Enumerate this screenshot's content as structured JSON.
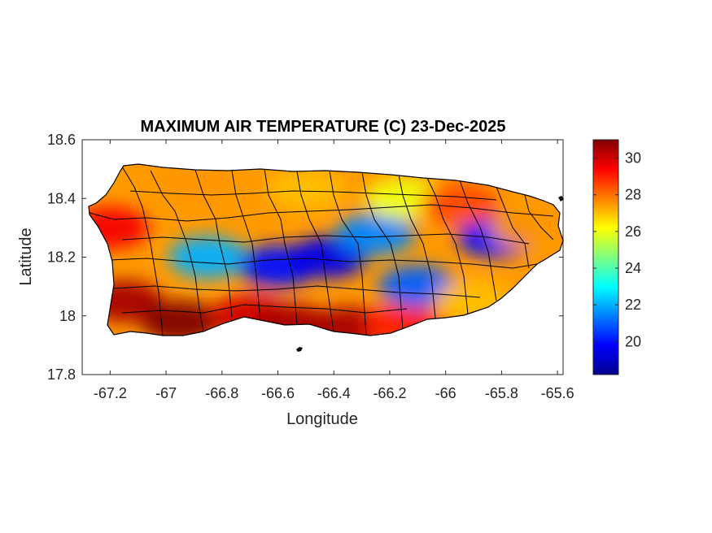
{
  "chart_data": {
    "type": "heatmap",
    "title": "MAXIMUM AIR TEMPERATURE (C) 23-Dec-2025",
    "xlabel": "Longitude",
    "ylabel": "Latitude",
    "xlim": [
      -67.3,
      -65.58
    ],
    "ylim": [
      17.8,
      18.6
    ],
    "xticks": [
      -67.2,
      -67,
      -66.8,
      -66.6,
      -66.4,
      -66.2,
      -66,
      -65.8,
      -65.6
    ],
    "xtick_labels": [
      "-67.2",
      "-67",
      "-66.8",
      "-66.6",
      "-66.4",
      "-66.2",
      "-66",
      "-65.8",
      "-65.6"
    ],
    "yticks": [
      17.8,
      18,
      18.2,
      18.4,
      18.6
    ],
    "ytick_labels": [
      "17.8",
      "18",
      "18.2",
      "18.4",
      "18.6"
    ],
    "colorbar": {
      "colormap": "jet",
      "range": [
        18.2,
        31
      ],
      "ticks": [
        20,
        22,
        24,
        26,
        28,
        30
      ],
      "tick_labels": [
        "20",
        "22",
        "24",
        "26",
        "28",
        "30"
      ]
    },
    "field_regions": [
      {
        "lon": -67.15,
        "lat": 18.05,
        "value": 30.5
      },
      {
        "lon": -66.95,
        "lat": 17.98,
        "value": 31.0
      },
      {
        "lon": -66.7,
        "lat": 18.0,
        "value": 30.0
      },
      {
        "lon": -66.55,
        "lat": 17.97,
        "value": 30.5
      },
      {
        "lon": -66.35,
        "lat": 17.96,
        "value": 30.5
      },
      {
        "lon": -66.15,
        "lat": 17.97,
        "value": 29.0
      },
      {
        "lon": -67.2,
        "lat": 18.3,
        "value": 29.5
      },
      {
        "lon": -66.85,
        "lat": 18.2,
        "value": 22.0
      },
      {
        "lon": -66.6,
        "lat": 18.17,
        "value": 20.0
      },
      {
        "lon": -66.42,
        "lat": 18.2,
        "value": 19.5
      },
      {
        "lon": -66.25,
        "lat": 18.28,
        "value": 21.5
      },
      {
        "lon": -66.1,
        "lat": 18.1,
        "value": 21.0
      },
      {
        "lon": -65.82,
        "lat": 18.27,
        "value": 20.0
      },
      {
        "lon": -66.9,
        "lat": 18.45,
        "value": 27.5
      },
      {
        "lon": -66.5,
        "lat": 18.43,
        "value": 27.0
      },
      {
        "lon": -66.15,
        "lat": 18.4,
        "value": 26.0
      },
      {
        "lon": -65.95,
        "lat": 18.38,
        "value": 28.5
      },
      {
        "lon": -65.7,
        "lat": 18.3,
        "value": 27.5
      },
      {
        "lon": -65.9,
        "lat": 18.05,
        "value": 27.0
      }
    ]
  }
}
